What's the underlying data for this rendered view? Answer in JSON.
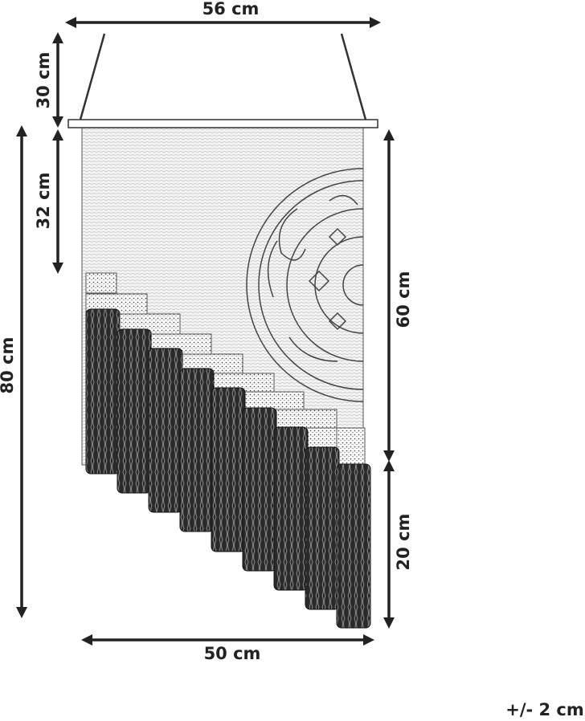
{
  "dimensions": {
    "top_width": "56 cm",
    "hanger_height": "30 cm",
    "upper_panel_height": "32 cm",
    "total_height": "80 cm",
    "panel_height": "60 cm",
    "fringe_height": "20 cm",
    "bottom_width": "50 cm"
  },
  "tolerance": "+/- 2 cm"
}
